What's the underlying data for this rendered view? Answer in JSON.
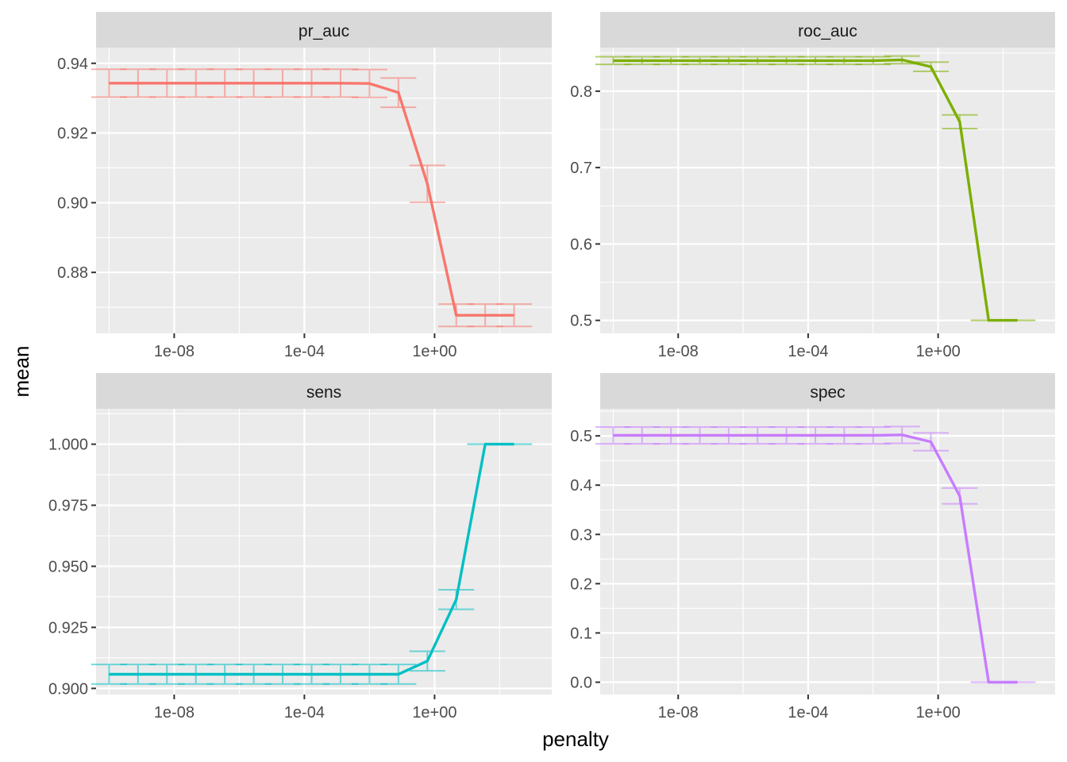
{
  "chart_data": {
    "type": "line",
    "xlabel": "penalty",
    "ylabel": "mean",
    "x_scale": "log10",
    "x_ticks": [
      1e-08,
      0.0001,
      1
    ],
    "x_tick_labels": [
      "1e-08",
      "1e-04",
      "1e+00"
    ],
    "x": [
      1e-10,
      7.74e-10,
      5.99e-09,
      4.64e-08,
      3.59e-07,
      2.78e-06,
      2.15e-05,
      0.000167,
      0.00129,
      0.01,
      0.0774,
      0.599,
      4.64,
      35.9,
      278
    ],
    "grid": true,
    "error_bars": true,
    "panels": [
      {
        "name": "pr_auc",
        "color": "#F8766D",
        "ylim": [
          0.8625,
          0.9445
        ],
        "y_ticks": [
          0.88,
          0.9,
          0.92,
          0.94
        ],
        "y_tick_labels": [
          "0.88",
          "0.90",
          "0.92",
          "0.94"
        ],
        "values": [
          0.9343,
          0.9343,
          0.9343,
          0.9343,
          0.9343,
          0.9343,
          0.9343,
          0.9343,
          0.9343,
          0.9342,
          0.9316,
          0.9054,
          0.8677,
          0.8677,
          0.8677
        ],
        "err": [
          0.004,
          0.004,
          0.004,
          0.004,
          0.004,
          0.004,
          0.004,
          0.004,
          0.004,
          0.004,
          0.0042,
          0.0053,
          0.0032,
          0.0032,
          0.0032
        ]
      },
      {
        "name": "roc_auc",
        "color": "#7CAE00",
        "ylim": [
          0.483,
          0.857
        ],
        "y_ticks": [
          0.5,
          0.6,
          0.7,
          0.8
        ],
        "y_tick_labels": [
          "0.5",
          "0.6",
          "0.7",
          "0.8"
        ],
        "values": [
          0.84,
          0.84,
          0.84,
          0.84,
          0.84,
          0.84,
          0.84,
          0.84,
          0.84,
          0.84,
          0.841,
          0.832,
          0.76,
          0.5,
          0.5
        ],
        "err": [
          0.005,
          0.005,
          0.005,
          0.005,
          0.005,
          0.005,
          0.005,
          0.005,
          0.005,
          0.005,
          0.005,
          0.006,
          0.009,
          0.0,
          0.0
        ]
      },
      {
        "name": "sens",
        "color": "#00BFC4",
        "ylim": [
          0.8975,
          1.0145
        ],
        "y_ticks": [
          0.9,
          0.925,
          0.95,
          0.975,
          1.0
        ],
        "y_tick_labels": [
          "0.900",
          "0.925",
          "0.950",
          "0.975",
          "1.000"
        ],
        "values": [
          0.9058,
          0.9058,
          0.9058,
          0.9058,
          0.9058,
          0.9058,
          0.9058,
          0.9058,
          0.9058,
          0.9058,
          0.9058,
          0.9112,
          0.9364,
          1.0,
          1.0
        ],
        "err": [
          0.004,
          0.004,
          0.004,
          0.004,
          0.004,
          0.004,
          0.004,
          0.004,
          0.004,
          0.004,
          0.004,
          0.004,
          0.004,
          0.0,
          0.0
        ]
      },
      {
        "name": "spec",
        "color": "#C77CFF",
        "ylim": [
          -0.025,
          0.555
        ],
        "y_ticks": [
          0.0,
          0.1,
          0.2,
          0.3,
          0.4,
          0.5
        ],
        "y_tick_labels": [
          "0.0",
          "0.1",
          "0.2",
          "0.3",
          "0.4",
          "0.5"
        ],
        "values": [
          0.501,
          0.501,
          0.501,
          0.501,
          0.501,
          0.501,
          0.501,
          0.501,
          0.501,
          0.501,
          0.502,
          0.488,
          0.378,
          0.0,
          0.0
        ],
        "err": [
          0.017,
          0.017,
          0.017,
          0.017,
          0.017,
          0.017,
          0.017,
          0.017,
          0.017,
          0.017,
          0.017,
          0.018,
          0.016,
          0.0,
          0.0
        ]
      }
    ]
  }
}
